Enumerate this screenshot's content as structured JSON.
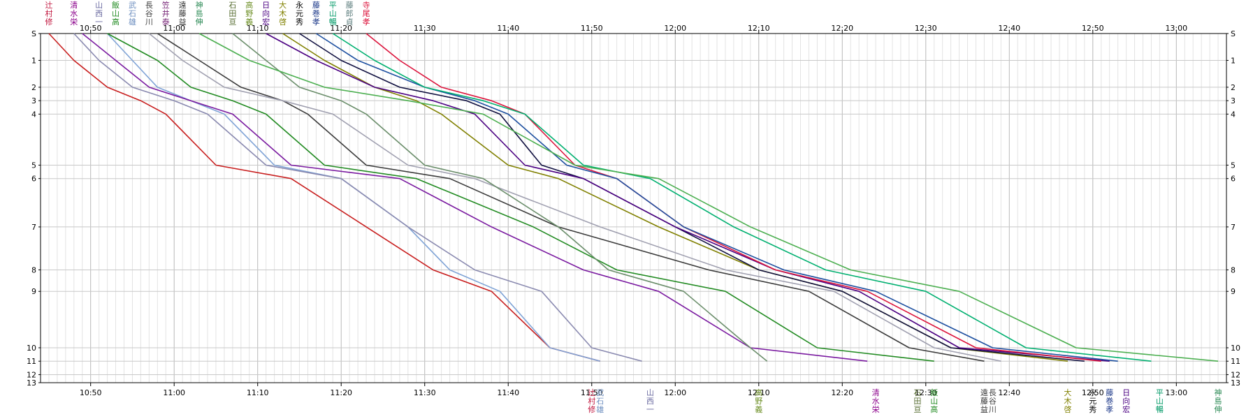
{
  "chart_data": {
    "type": "line",
    "title": "",
    "xlabel": "",
    "ylabel": "",
    "x_domain": [
      "10:44",
      "13:06"
    ],
    "x_ticks": [
      "10:50",
      "11:00",
      "11:10",
      "11:20",
      "11:30",
      "11:40",
      "11:50",
      "12:00",
      "12:10",
      "12:20",
      "12:30",
      "12:40",
      "12:50",
      "13:00"
    ],
    "y_domain": [
      0,
      13
    ],
    "y_ticks": [
      "S",
      "1",
      "2",
      "3",
      "4",
      "5",
      "6",
      "7",
      "8",
      "9",
      "10",
      "11",
      "12",
      "13"
    ],
    "y_tick_pos": [
      0,
      1.0,
      2.0,
      2.5,
      3.0,
      4.9,
      5.4,
      7.2,
      8.8,
      9.6,
      11.7,
      12.2,
      12.7,
      13
    ],
    "stations": [
      0,
      1.0,
      2.0,
      2.5,
      3.0,
      4.9,
      5.4,
      7.2,
      8.8,
      9.6,
      11.7,
      12.2,
      12.7,
      13
    ],
    "top_labels": [
      {
        "text": "辻村修",
        "color": "#c0143c",
        "x": "10:45"
      },
      {
        "text": "清水栄",
        "color": "#8b008b",
        "x": "10:48"
      },
      {
        "text": "山西一",
        "color": "#6a6aa0",
        "x": "10:51"
      },
      {
        "text": "飯山高",
        "color": "#228b22",
        "x": "10:53"
      },
      {
        "text": "武石雄",
        "color": "#6c8ebf",
        "x": "10:55"
      },
      {
        "text": "長谷川",
        "color": "#444444",
        "x": "10:57"
      },
      {
        "text": "笠井泰",
        "color": "#7a2a7a",
        "x": "10:59"
      },
      {
        "text": "遠藤益",
        "color": "#333333",
        "x": "11:01"
      },
      {
        "text": "神島伸",
        "color": "#2e8b57",
        "x": "11:03"
      },
      {
        "text": "石田亘",
        "color": "#556b2f",
        "x": "11:07"
      },
      {
        "text": "高野義",
        "color": "#6b8e23",
        "x": "11:09"
      },
      {
        "text": "日向宏",
        "color": "#4b0082",
        "x": "11:11"
      },
      {
        "text": "大木啓",
        "color": "#808000",
        "x": "11:13"
      },
      {
        "text": "永元秀",
        "color": "#000000",
        "x": "11:15"
      },
      {
        "text": "藤巻孝",
        "color": "#1e3a8a",
        "x": "11:17"
      },
      {
        "text": "平山暢",
        "color": "#009966",
        "x": "11:19"
      },
      {
        "text": "藤郎貞",
        "color": "#5f7f7f",
        "x": "11:21"
      },
      {
        "text": "寺尾孝",
        "color": "#dc143c",
        "x": "11:23"
      }
    ],
    "bottom_labels": [
      {
        "text": "辻村修",
        "color": "#c0143c",
        "x": "11:50"
      },
      {
        "text": "武石雄",
        "color": "#6c8ebf",
        "x": "11:51"
      },
      {
        "text": "山西一",
        "color": "#6a6aa0",
        "x": "11:57"
      },
      {
        "text": "高野義",
        "color": "#6b8e23",
        "x": "12:10"
      },
      {
        "text": "清水栄",
        "color": "#8b008b",
        "x": "12:24"
      },
      {
        "text": "石田亘",
        "color": "#556b2f",
        "x": "12:29"
      },
      {
        "text": "飯山高",
        "color": "#228b22",
        "x": "12:31"
      },
      {
        "text": "遠藤益",
        "color": "#333333",
        "x": "12:37"
      },
      {
        "text": "長谷川",
        "color": "#444444",
        "x": "12:38"
      },
      {
        "text": "大木啓",
        "color": "#808000",
        "x": "12:47"
      },
      {
        "text": "永元秀",
        "color": "#000000",
        "x": "12:50"
      },
      {
        "text": "藤巻孝",
        "color": "#1e3a8a",
        "x": "12:52"
      },
      {
        "text": "日向宏",
        "color": "#4b0082",
        "x": "12:54"
      },
      {
        "text": "平山暢",
        "color": "#009966",
        "x": "12:58"
      },
      {
        "text": "神島伸",
        "color": "#2e8b57",
        "x": "13:05"
      }
    ],
    "series": [
      {
        "color": "#c81e1e",
        "times": [
          "10:45",
          "10:48",
          "10:52",
          "10:56",
          "10:59",
          "11:05",
          "11:14",
          "11:23",
          "11:31",
          "11:38",
          "11:45",
          "11:51"
        ]
      },
      {
        "color": "#7fa3d6",
        "times": [
          "10:52",
          "10:55",
          "10:58",
          "11:02",
          "11:06",
          "11:12",
          "11:20",
          "11:28",
          "11:33",
          "11:39",
          "11:45",
          "11:51"
        ]
      },
      {
        "color": "#8a8ab0",
        "times": [
          "10:48",
          "10:51",
          "10:55",
          "11:00",
          "11:04",
          "11:11",
          "11:20",
          "11:28",
          "11:36",
          "11:44",
          "11:50",
          "11:56"
        ]
      },
      {
        "color": "#7a1aa0",
        "times": [
          "10:49",
          "10:53",
          "10:57",
          "11:02",
          "11:07",
          "11:14",
          "11:27",
          "11:38",
          "11:49",
          "11:58",
          "12:09",
          "12:23"
        ]
      },
      {
        "color": "#228b22",
        "times": [
          "10:52",
          "10:58",
          "11:02",
          "11:07",
          "11:11",
          "11:18",
          "11:29",
          "11:43",
          "11:53",
          "12:06",
          "12:17",
          "12:31"
        ]
      },
      {
        "color": "#3b3b3b",
        "times": [
          "10:58",
          "11:03",
          "11:08",
          "11:13",
          "11:16",
          "11:23",
          "11:33",
          "11:46",
          "12:04",
          "12:16",
          "12:28",
          "12:37"
        ]
      },
      {
        "color": "#a0a0b0",
        "times": [
          "10:57",
          "11:01",
          "11:06",
          "11:13",
          "11:19",
          "11:28",
          "11:36",
          "11:51",
          "12:06",
          "12:19",
          "12:31",
          "12:39"
        ]
      },
      {
        "color": "#6b8e6b",
        "times": [
          "11:07",
          "11:11",
          "11:15",
          "11:20",
          "11:23",
          "11:30",
          "11:37",
          "11:46",
          "11:52",
          "12:01",
          "12:09",
          "12:11"
        ]
      },
      {
        "color": "#808000",
        "times": [
          "11:13",
          "11:18",
          "11:24",
          "11:29",
          "11:32",
          "11:40",
          "11:46",
          "11:58",
          "12:10",
          "12:20",
          "12:33",
          "12:47"
        ]
      },
      {
        "color": "#101040",
        "times": [
          "11:15",
          "11:20",
          "11:27",
          "11:35",
          "11:39",
          "11:44",
          "11:49",
          "12:00",
          "12:10",
          "12:20",
          "12:33",
          "12:49"
        ]
      },
      {
        "color": "#4b0082",
        "times": [
          "11:11",
          "11:17",
          "11:24",
          "11:31",
          "11:36",
          "11:42",
          "11:49",
          "12:00",
          "12:12",
          "12:22",
          "12:34",
          "12:52"
        ]
      },
      {
        "color": "#dc143c",
        "times": [
          "11:23",
          "11:27",
          "11:32",
          "11:38",
          "11:42",
          "11:48",
          "11:53",
          "12:01",
          "12:12",
          "12:23",
          "12:36",
          "12:51"
        ]
      },
      {
        "color": "#1e50a0",
        "times": [
          "11:17",
          "11:22",
          "11:30",
          "11:36",
          "11:40",
          "11:47",
          "11:53",
          "12:01",
          "12:13",
          "12:24",
          "12:38",
          "12:53"
        ]
      },
      {
        "color": "#00b070",
        "times": [
          "11:19",
          "11:24",
          "11:30",
          "11:37",
          "11:42",
          "11:49",
          "11:57",
          "12:07",
          "12:18",
          "12:30",
          "12:42",
          "12:57"
        ]
      },
      {
        "color": "#4caf50",
        "times": [
          "11:03",
          "11:09",
          "11:18",
          "11:28",
          "11:37",
          "11:48",
          "11:58",
          "12:09",
          "12:21",
          "12:34",
          "12:48",
          "13:05"
        ]
      }
    ]
  }
}
